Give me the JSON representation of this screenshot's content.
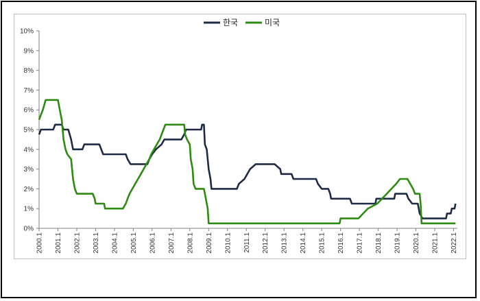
{
  "chart_data": {
    "type": "line",
    "title": "",
    "xlabel": "",
    "ylabel": "",
    "ylim": [
      0,
      10
    ],
    "y_ticks": [
      "0%",
      "1%",
      "2%",
      "3%",
      "4%",
      "5%",
      "6%",
      "7%",
      "8%",
      "9%",
      "10%"
    ],
    "x_ticks": [
      "2000.1",
      "2001.1",
      "2002.1",
      "2003.1",
      "2004.1",
      "2005.1",
      "2006.1",
      "2007.1",
      "2008.1",
      "2009.1",
      "2010.1",
      "2011.1",
      "2012.1",
      "2013.1",
      "2014.1",
      "2015.1",
      "2016.1",
      "2017.1",
      "2018.1",
      "2019.1",
      "2020.1",
      "2021.1",
      "2022.1"
    ],
    "x_range": [
      2000.0,
      2022.2
    ],
    "legend": "top-center",
    "series": [
      {
        "name": "한국",
        "color": "#1f2a44",
        "points": [
          [
            2000.0,
            4.75
          ],
          [
            2000.1,
            5.0
          ],
          [
            2000.75,
            5.0
          ],
          [
            2000.85,
            5.25
          ],
          [
            2001.2,
            5.25
          ],
          [
            2001.3,
            5.0
          ],
          [
            2001.55,
            5.0
          ],
          [
            2001.7,
            4.5
          ],
          [
            2001.8,
            4.0
          ],
          [
            2002.3,
            4.0
          ],
          [
            2002.4,
            4.25
          ],
          [
            2003.2,
            4.25
          ],
          [
            2003.3,
            4.0
          ],
          [
            2003.4,
            3.75
          ],
          [
            2004.6,
            3.75
          ],
          [
            2004.7,
            3.5
          ],
          [
            2004.85,
            3.25
          ],
          [
            2005.75,
            3.25
          ],
          [
            2005.85,
            3.5
          ],
          [
            2006.0,
            3.75
          ],
          [
            2006.2,
            4.0
          ],
          [
            2006.5,
            4.25
          ],
          [
            2006.65,
            4.5
          ],
          [
            2007.55,
            4.5
          ],
          [
            2007.7,
            4.75
          ],
          [
            2007.8,
            5.0
          ],
          [
            2008.6,
            5.0
          ],
          [
            2008.65,
            5.25
          ],
          [
            2008.75,
            5.25
          ],
          [
            2008.8,
            4.25
          ],
          [
            2008.9,
            4.0
          ],
          [
            2009.0,
            3.0
          ],
          [
            2009.1,
            2.5
          ],
          [
            2009.15,
            2.0
          ],
          [
            2010.5,
            2.0
          ],
          [
            2010.6,
            2.25
          ],
          [
            2010.9,
            2.5
          ],
          [
            2011.05,
            2.75
          ],
          [
            2011.2,
            3.0
          ],
          [
            2011.5,
            3.25
          ],
          [
            2012.5,
            3.25
          ],
          [
            2012.8,
            3.0
          ],
          [
            2012.85,
            2.75
          ],
          [
            2013.4,
            2.75
          ],
          [
            2013.5,
            2.5
          ],
          [
            2014.7,
            2.5
          ],
          [
            2014.8,
            2.25
          ],
          [
            2015.0,
            2.0
          ],
          [
            2015.35,
            2.0
          ],
          [
            2015.45,
            1.75
          ],
          [
            2015.5,
            1.5
          ],
          [
            2016.5,
            1.5
          ],
          [
            2016.6,
            1.25
          ],
          [
            2017.85,
            1.25
          ],
          [
            2017.9,
            1.5
          ],
          [
            2018.85,
            1.5
          ],
          [
            2018.9,
            1.75
          ],
          [
            2019.5,
            1.75
          ],
          [
            2019.6,
            1.5
          ],
          [
            2019.8,
            1.25
          ],
          [
            2020.1,
            1.25
          ],
          [
            2020.2,
            0.75
          ],
          [
            2020.35,
            0.5
          ],
          [
            2021.6,
            0.5
          ],
          [
            2021.65,
            0.75
          ],
          [
            2021.85,
            0.75
          ],
          [
            2021.9,
            1.0
          ],
          [
            2022.05,
            1.0
          ],
          [
            2022.1,
            1.25
          ]
        ]
      },
      {
        "name": "미국",
        "color": "#2e8b11",
        "points": [
          [
            2000.0,
            5.5
          ],
          [
            2000.1,
            5.75
          ],
          [
            2000.2,
            6.0
          ],
          [
            2000.35,
            6.5
          ],
          [
            2001.0,
            6.5
          ],
          [
            2001.1,
            6.0
          ],
          [
            2001.2,
            5.5
          ],
          [
            2001.3,
            4.5
          ],
          [
            2001.4,
            4.0
          ],
          [
            2001.5,
            3.75
          ],
          [
            2001.7,
            3.5
          ],
          [
            2001.75,
            3.0
          ],
          [
            2001.8,
            2.5
          ],
          [
            2001.9,
            2.0
          ],
          [
            2002.0,
            1.75
          ],
          [
            2002.85,
            1.75
          ],
          [
            2002.95,
            1.5
          ],
          [
            2003.0,
            1.25
          ],
          [
            2003.45,
            1.25
          ],
          [
            2003.5,
            1.0
          ],
          [
            2004.45,
            1.0
          ],
          [
            2004.6,
            1.25
          ],
          [
            2004.7,
            1.5
          ],
          [
            2004.8,
            1.75
          ],
          [
            2004.95,
            2.0
          ],
          [
            2005.1,
            2.25
          ],
          [
            2005.25,
            2.5
          ],
          [
            2005.4,
            2.75
          ],
          [
            2005.55,
            3.0
          ],
          [
            2005.7,
            3.25
          ],
          [
            2005.85,
            3.5
          ],
          [
            2005.95,
            3.75
          ],
          [
            2006.1,
            4.0
          ],
          [
            2006.25,
            4.25
          ],
          [
            2006.4,
            4.5
          ],
          [
            2006.5,
            4.75
          ],
          [
            2006.6,
            5.0
          ],
          [
            2006.7,
            5.25
          ],
          [
            2007.7,
            5.25
          ],
          [
            2007.75,
            4.75
          ],
          [
            2007.85,
            4.5
          ],
          [
            2008.0,
            4.25
          ],
          [
            2008.05,
            3.5
          ],
          [
            2008.15,
            3.0
          ],
          [
            2008.2,
            2.25
          ],
          [
            2008.3,
            2.0
          ],
          [
            2008.75,
            2.0
          ],
          [
            2008.85,
            1.5
          ],
          [
            2008.95,
            1.0
          ],
          [
            2009.0,
            0.25
          ],
          [
            2015.95,
            0.25
          ],
          [
            2016.0,
            0.5
          ],
          [
            2016.95,
            0.5
          ],
          [
            2017.2,
            0.75
          ],
          [
            2017.45,
            1.0
          ],
          [
            2017.95,
            1.25
          ],
          [
            2018.2,
            1.5
          ],
          [
            2018.45,
            1.75
          ],
          [
            2018.7,
            2.0
          ],
          [
            2018.95,
            2.25
          ],
          [
            2019.15,
            2.5
          ],
          [
            2019.55,
            2.5
          ],
          [
            2019.7,
            2.25
          ],
          [
            2019.85,
            2.0
          ],
          [
            2019.95,
            1.75
          ],
          [
            2020.2,
            1.75
          ],
          [
            2020.25,
            1.25
          ],
          [
            2020.3,
            0.25
          ],
          [
            2022.1,
            0.25
          ]
        ]
      }
    ]
  }
}
